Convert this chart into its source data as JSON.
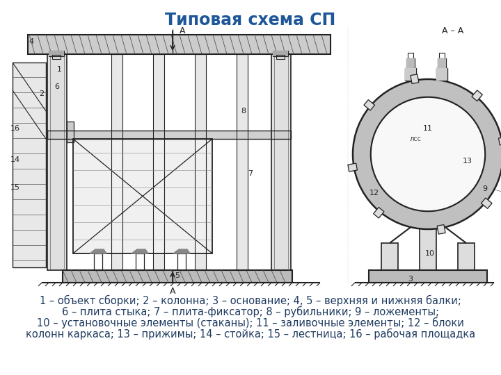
{
  "title": "Типовая схема СП",
  "title_color": "#1e5799",
  "title_fontsize": 17,
  "caption_lines": [
    "1 – объект сборки; 2 – колонна; 3 – основание; 4, 5 – верхняя и нижняя балки;",
    "6 – плита стыка; 7 – плита-фиксатор; 8 – рубильники; 9 – ложементы;",
    "10 – установочные элементы (стаканы); 11 – заливочные элементы; 12 – блоки",
    "колонн каркаса; 13 – прижимы; 14 – стойка; 15 – лестница; 16 – рабочая площадка"
  ],
  "caption_fontsize": 10.5,
  "caption_color": "#1e3a5f",
  "bg_color": "#ffffff",
  "fig_width": 7.2,
  "fig_height": 5.4,
  "dpi": 100,
  "draw_color": "#222222",
  "draw_lw": 1.0
}
